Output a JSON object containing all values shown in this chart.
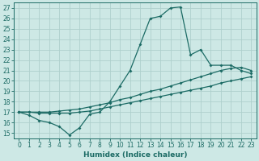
{
  "xlabel": "Humidex (Indice chaleur)",
  "bg_color": "#cde8e5",
  "grid_color": "#aed0cc",
  "line_color": "#1c6b65",
  "xlim": [
    -0.5,
    23.5
  ],
  "ylim": [
    14.5,
    27.5
  ],
  "xticks": [
    0,
    1,
    2,
    3,
    4,
    5,
    6,
    7,
    8,
    9,
    10,
    11,
    12,
    13,
    14,
    15,
    16,
    17,
    18,
    19,
    20,
    21,
    22,
    23
  ],
  "yticks": [
    15,
    16,
    17,
    18,
    19,
    20,
    21,
    22,
    23,
    24,
    25,
    26,
    27
  ],
  "curve1_x": [
    0,
    1,
    2,
    3,
    4,
    5,
    6,
    7,
    8,
    9,
    10,
    11,
    12,
    13,
    14,
    15,
    16,
    17,
    18,
    19,
    20,
    21,
    22,
    23
  ],
  "curve1_y": [
    17,
    16.7,
    16.2,
    16.0,
    15.6,
    14.8,
    15.5,
    16.8,
    17.0,
    18.0,
    19.5,
    21.0,
    23.5,
    26.0,
    26.2,
    27.0,
    27.1,
    22.5,
    23.0,
    21.5,
    21.5,
    21.5,
    21.0,
    20.7
  ],
  "curve2_x": [
    0,
    1,
    2,
    3,
    4,
    5,
    6,
    7,
    8,
    9,
    10,
    11,
    12,
    13,
    14,
    15,
    16,
    17,
    18,
    19,
    20,
    21,
    22,
    23
  ],
  "curve2_y": [
    17,
    17.0,
    17.0,
    17.0,
    17.1,
    17.2,
    17.3,
    17.5,
    17.7,
    17.9,
    18.2,
    18.4,
    18.7,
    19.0,
    19.2,
    19.5,
    19.8,
    20.1,
    20.4,
    20.7,
    21.0,
    21.2,
    21.3,
    21.0
  ],
  "curve3_x": [
    0,
    1,
    2,
    3,
    4,
    5,
    6,
    7,
    8,
    9,
    10,
    11,
    12,
    13,
    14,
    15,
    16,
    17,
    18,
    19,
    20,
    21,
    22,
    23
  ],
  "curve3_y": [
    17,
    17.0,
    16.9,
    16.9,
    16.9,
    16.9,
    17.0,
    17.1,
    17.3,
    17.5,
    17.7,
    17.9,
    18.1,
    18.3,
    18.5,
    18.7,
    18.9,
    19.1,
    19.3,
    19.5,
    19.8,
    20.0,
    20.2,
    20.4
  ],
  "xlabel_fontsize": 6.5,
  "tick_fontsize": 5.5,
  "lw": 0.9,
  "ms": 2.0
}
